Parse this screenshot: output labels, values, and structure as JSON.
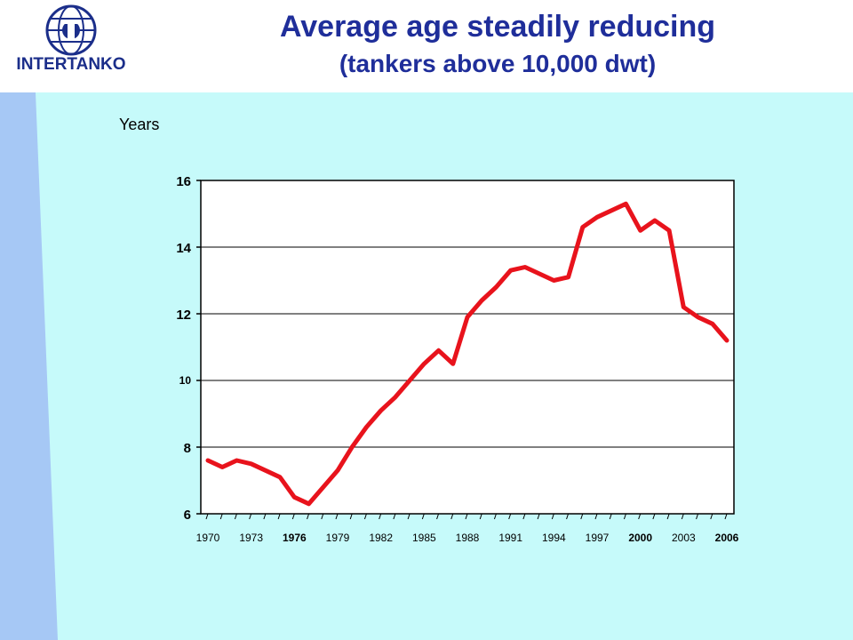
{
  "header": {
    "logo_text": "INTERTANKO",
    "title": "Average age steadily reducing",
    "subtitle": "(tankers above 10,000 dwt)"
  },
  "colors": {
    "title": "#1f2e9a",
    "line": "#e8131c",
    "panel": "#c6fafa",
    "side_band": "#a6c8f5"
  },
  "icons": [
    "globe-logo-icon"
  ],
  "chart_data": {
    "type": "line",
    "title": "",
    "ylabel": "Years",
    "xlabel": "",
    "ylim": [
      6,
      16
    ],
    "yticks": [
      6,
      8,
      10,
      12,
      14,
      16
    ],
    "xlim": [
      1970,
      2006
    ],
    "xtick_labels": [
      "1970",
      "1973",
      "1976",
      "1979",
      "1982",
      "1985",
      "1988",
      "1991",
      "1994",
      "1997",
      "2000",
      "2003",
      "2006"
    ],
    "bold_xtick_labels": [
      "1976",
      "2000",
      "2006"
    ],
    "grid": "horizontal",
    "x": [
      1970,
      1971,
      1972,
      1973,
      1974,
      1975,
      1976,
      1977,
      1978,
      1979,
      1980,
      1981,
      1982,
      1983,
      1984,
      1985,
      1986,
      1987,
      1988,
      1989,
      1990,
      1991,
      1992,
      1993,
      1994,
      1995,
      1996,
      1997,
      1998,
      1999,
      2000,
      2001,
      2002,
      2003,
      2004,
      2005,
      2006
    ],
    "series": [
      {
        "values": [
          7.6,
          7.4,
          7.6,
          7.5,
          7.3,
          7.1,
          6.5,
          6.3,
          6.8,
          7.3,
          8.0,
          8.6,
          9.1,
          9.5,
          10.0,
          10.5,
          10.9,
          10.5,
          11.9,
          12.4,
          12.8,
          13.3,
          13.4,
          13.2,
          13.0,
          13.1,
          14.6,
          14.9,
          15.1,
          15.3,
          14.5,
          14.8,
          14.5,
          12.2,
          11.9,
          11.7,
          11.2
        ]
      }
    ]
  }
}
